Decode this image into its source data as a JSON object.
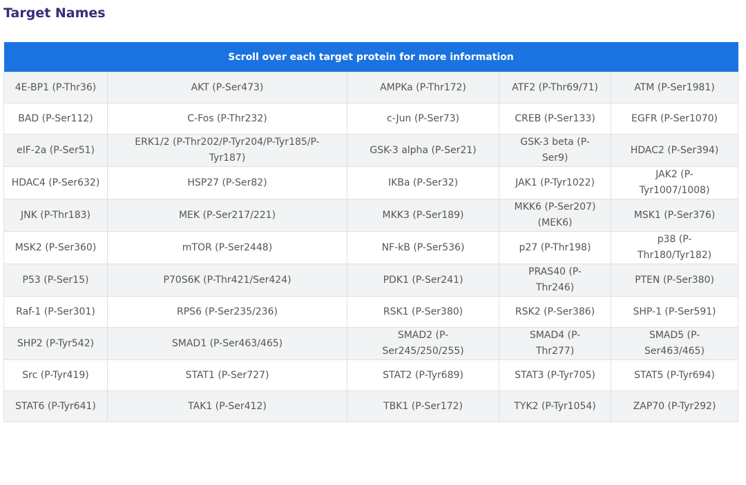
{
  "header": {
    "title": "Target Names"
  },
  "table": {
    "caption": "Scroll over each target protein for more information",
    "rows": [
      [
        "4E-BP1 (P-Thr36)",
        "AKT (P-Ser473)",
        "AMPKa (P-Thr172)",
        "ATF2 (P-Thr69/71)",
        "ATM (P-Ser1981)"
      ],
      [
        "BAD (P-Ser112)",
        "C-Fos (P-Thr232)",
        "c-Jun (P-Ser73)",
        "CREB (P-Ser133)",
        "EGFR (P-Ser1070)"
      ],
      [
        "eIF-2a (P-Ser51)",
        "ERK1/2 (P-Thr202/P-Tyr204/P-Tyr185/P-Tyr187)",
        "GSK-3 alpha (P-Ser21)",
        "GSK-3 beta (P-Ser9)",
        "HDAC2 (P-Ser394)"
      ],
      [
        "HDAC4 (P-Ser632)",
        "HSP27 (P-Ser82)",
        "IKBa (P-Ser32)",
        "JAK1 (P-Tyr1022)",
        "JAK2 (P-Tyr1007/1008)"
      ],
      [
        "JNK (P-Thr183)",
        "MEK (P-Ser217/221)",
        "MKK3 (P-Ser189)",
        "MKK6 (P-Ser207) (MEK6)",
        "MSK1 (P-Ser376)"
      ],
      [
        "MSK2 (P-Ser360)",
        "mTOR (P-Ser2448)",
        "NF-kB (P-Ser536)",
        "p27 (P-Thr198)",
        "p38 (P-Thr180/Tyr182)"
      ],
      [
        "P53 (P-Ser15)",
        "P70S6K (P-Thr421/Ser424)",
        "PDK1 (P-Ser241)",
        "PRAS40 (P-Thr246)",
        "PTEN (P-Ser380)"
      ],
      [
        "Raf-1 (P-Ser301)",
        "RPS6 (P-Ser235/236)",
        "RSK1 (P-Ser380)",
        "RSK2 (P-Ser386)",
        "SHP-1 (P-Ser591)"
      ],
      [
        "SHP2 (P-Tyr542)",
        "SMAD1 (P-Ser463/465)",
        "SMAD2 (P-Ser245/250/255)",
        "SMAD4 (P-Thr277)",
        "SMAD5 (P-Ser463/465)"
      ],
      [
        "Src (P-Tyr419)",
        "STAT1 (P-Ser727)",
        "STAT2 (P-Tyr689)",
        "STAT3 (P-Tyr705)",
        "STAT5 (P-Tyr694)"
      ],
      [
        "STAT6 (P-Tyr641)",
        "TAK1 (P-Ser412)",
        "TBK1 (P-Ser172)",
        "TYK2 (P-Tyr1054)",
        "ZAP70 (P-Tyr292)"
      ]
    ]
  }
}
